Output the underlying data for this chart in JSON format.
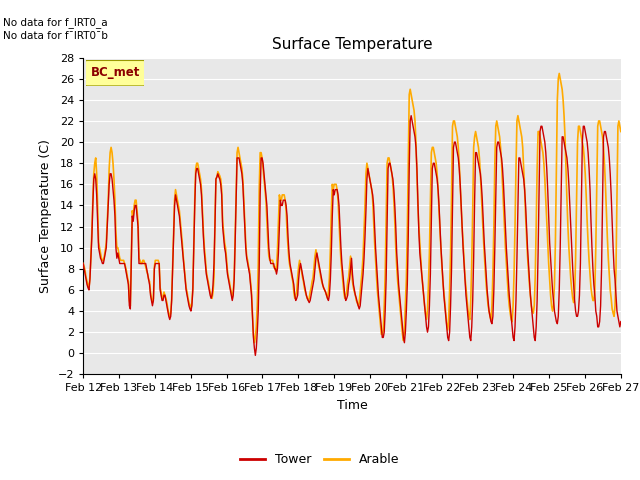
{
  "title": "Surface Temperature",
  "xlabel": "Time",
  "ylabel": "Surface Temperature (C)",
  "ylim": [
    -2,
    28
  ],
  "yticks": [
    -2,
    0,
    2,
    4,
    6,
    8,
    10,
    12,
    14,
    16,
    18,
    20,
    22,
    24,
    26,
    28
  ],
  "xtick_labels": [
    "Feb 12",
    "Feb 13",
    "Feb 14",
    "Feb 15",
    "Feb 16",
    "Feb 17",
    "Feb 18",
    "Feb 19",
    "Feb 20",
    "Feb 21",
    "Feb 22",
    "Feb 23",
    "Feb 24",
    "Feb 25",
    "Feb 26",
    "Feb 27"
  ],
  "tower_color": "#cc0000",
  "arable_color": "#ffaa00",
  "bg_color": "#e8e8e8",
  "no_data_text1": "No data for f_IRT0_a",
  "no_data_text2": "No data for f¯IRT0¯b",
  "bc_met_label": "BC_met",
  "legend_tower": "Tower",
  "legend_arable": "Arable",
  "tower_data": [
    8.5,
    8.0,
    7.5,
    7.0,
    6.5,
    6.2,
    6.0,
    7.0,
    9.0,
    11.0,
    14.0,
    16.5,
    17.0,
    16.5,
    15.0,
    12.5,
    10.0,
    9.5,
    9.0,
    8.8,
    8.5,
    8.5,
    9.0,
    9.5,
    10.0,
    12.0,
    14.0,
    16.0,
    17.0,
    17.0,
    16.5,
    15.5,
    14.5,
    13.0,
    10.0,
    9.0,
    9.5,
    9.0,
    8.5,
    8.5,
    8.5,
    8.5,
    8.5,
    8.5,
    8.0,
    7.5,
    7.0,
    6.5,
    4.5,
    4.2,
    8.5,
    13.0,
    12.5,
    13.5,
    14.0,
    14.0,
    13.0,
    12.0,
    8.5,
    8.5,
    8.5,
    8.5,
    8.5,
    8.5,
    8.5,
    8.5,
    8.0,
    7.5,
    7.0,
    6.5,
    5.5,
    5.0,
    4.5,
    5.0,
    8.0,
    8.5,
    8.5,
    8.5,
    8.5,
    8.5,
    6.0,
    5.5,
    5.0,
    5.0,
    5.5,
    5.5,
    5.0,
    4.5,
    4.0,
    3.5,
    3.2,
    3.5,
    5.0,
    8.0,
    11.0,
    14.0,
    15.0,
    14.5,
    14.0,
    13.5,
    13.0,
    12.0,
    11.0,
    10.0,
    9.0,
    8.0,
    7.0,
    6.0,
    5.5,
    5.0,
    4.5,
    4.2,
    4.0,
    4.5,
    6.0,
    10.0,
    14.0,
    17.0,
    17.5,
    17.5,
    17.0,
    16.5,
    16.0,
    15.0,
    13.0,
    11.0,
    9.5,
    8.5,
    7.5,
    7.0,
    6.5,
    6.0,
    5.5,
    5.2,
    5.5,
    6.5,
    8.5,
    12.0,
    16.5,
    16.7,
    17.0,
    16.7,
    16.5,
    16.0,
    15.0,
    12.0,
    11.0,
    10.0,
    9.5,
    8.5,
    7.5,
    7.0,
    6.5,
    6.0,
    5.5,
    5.0,
    5.5,
    7.0,
    10.5,
    14.5,
    18.5,
    18.5,
    18.5,
    18.0,
    17.5,
    17.0,
    16.0,
    14.0,
    12.0,
    10.0,
    9.0,
    8.5,
    8.0,
    7.5,
    6.5,
    5.5,
    3.5,
    1.5,
    0.5,
    -0.2,
    0.5,
    2.0,
    4.0,
    8.0,
    15.0,
    18.5,
    18.5,
    18.0,
    17.0,
    16.0,
    15.0,
    14.0,
    12.0,
    10.0,
    9.0,
    8.5,
    8.5,
    8.5,
    8.5,
    8.0,
    8.0,
    7.5,
    8.0,
    9.5,
    12.0,
    14.5,
    14.0,
    14.0,
    14.5,
    14.5,
    14.5,
    14.0,
    13.0,
    11.0,
    9.5,
    8.5,
    8.0,
    7.5,
    7.0,
    6.5,
    5.5,
    5.0,
    5.2,
    5.5,
    7.0,
    8.0,
    8.5,
    8.0,
    7.5,
    7.0,
    6.5,
    6.0,
    5.5,
    5.2,
    5.0,
    4.8,
    5.0,
    5.5,
    6.0,
    6.5,
    7.0,
    8.0,
    9.0,
    9.5,
    9.0,
    8.5,
    8.0,
    7.5,
    7.0,
    6.5,
    6.2,
    6.0,
    5.8,
    5.5,
    5.2,
    5.0,
    5.5,
    7.0,
    9.5,
    13.0,
    15.5,
    15.0,
    15.5,
    15.5,
    15.5,
    15.0,
    14.0,
    12.0,
    10.0,
    8.5,
    7.5,
    6.5,
    5.5,
    5.0,
    5.2,
    5.5,
    6.5,
    7.0,
    8.0,
    9.0,
    7.5,
    6.5,
    6.0,
    5.5,
    5.2,
    4.8,
    4.5,
    4.2,
    4.5,
    5.5,
    6.5,
    7.5,
    9.0,
    11.0,
    13.5,
    16.5,
    17.5,
    17.0,
    16.5,
    16.0,
    15.5,
    15.0,
    14.0,
    12.0,
    10.0,
    8.5,
    7.0,
    5.5,
    4.5,
    3.5,
    2.5,
    1.5,
    1.5,
    2.0,
    4.0,
    7.0,
    12.0,
    17.5,
    18.0,
    18.0,
    17.5,
    17.0,
    16.5,
    15.5,
    14.0,
    12.0,
    9.5,
    8.0,
    6.5,
    5.5,
    4.5,
    3.5,
    2.5,
    1.5,
    1.0,
    2.0,
    4.0,
    6.5,
    11.0,
    17.5,
    22.0,
    22.5,
    22.0,
    21.5,
    21.0,
    20.5,
    19.5,
    17.5,
    14.5,
    11.5,
    9.5,
    8.5,
    7.5,
    6.5,
    5.5,
    4.5,
    3.5,
    2.5,
    2.0,
    2.5,
    4.5,
    7.5,
    12.5,
    17.5,
    18.0,
    18.0,
    17.5,
    17.0,
    16.5,
    15.5,
    14.0,
    12.0,
    10.0,
    8.5,
    7.0,
    5.5,
    4.5,
    3.5,
    2.5,
    1.5,
    1.2,
    2.0,
    4.5,
    8.0,
    13.5,
    19.5,
    20.0,
    20.0,
    19.5,
    19.0,
    18.5,
    17.5,
    16.0,
    14.0,
    12.0,
    10.0,
    8.5,
    7.0,
    5.5,
    4.5,
    3.5,
    2.5,
    1.5,
    1.2,
    2.5,
    5.0,
    9.0,
    14.5,
    19.0,
    19.0,
    18.5,
    18.0,
    17.5,
    17.0,
    16.0,
    14.5,
    12.5,
    10.5,
    9.0,
    7.5,
    6.0,
    5.0,
    4.0,
    3.5,
    3.0,
    2.8,
    3.5,
    6.0,
    10.0,
    14.5,
    19.5,
    20.0,
    20.0,
    19.5,
    19.0,
    18.5,
    17.5,
    16.0,
    14.0,
    12.0,
    10.0,
    8.5,
    7.0,
    5.5,
    4.5,
    3.5,
    2.5,
    1.5,
    1.2,
    2.5,
    5.0,
    9.0,
    14.0,
    18.5,
    18.5,
    18.0,
    17.5,
    17.0,
    16.5,
    15.5,
    14.0,
    12.0,
    10.0,
    8.5,
    7.0,
    5.5,
    4.5,
    3.5,
    2.5,
    1.5,
    1.2,
    2.5,
    5.0,
    9.5,
    15.0,
    21.0,
    21.5,
    21.5,
    21.0,
    20.5,
    20.0,
    19.0,
    17.5,
    15.5,
    13.0,
    10.5,
    9.0,
    7.5,
    6.0,
    5.0,
    4.0,
    3.5,
    3.0,
    2.8,
    3.5,
    6.0,
    10.0,
    15.0,
    20.5,
    20.5,
    20.0,
    19.5,
    19.0,
    18.5,
    17.5,
    16.0,
    14.0,
    12.0,
    10.0,
    8.0,
    6.5,
    5.0,
    4.0,
    3.5,
    3.5,
    4.0,
    5.5,
    8.5,
    14.0,
    20.0,
    21.5,
    21.5,
    21.0,
    20.5,
    20.0,
    19.0,
    17.5,
    15.5,
    12.5,
    10.0,
    8.0,
    6.5,
    5.5,
    4.0,
    3.5,
    2.5,
    2.5,
    3.0,
    4.5,
    8.0,
    14.5,
    20.5,
    21.0,
    21.0,
    20.5,
    20.0,
    19.5,
    18.5,
    17.0,
    15.0,
    12.5,
    10.0,
    8.0,
    7.0,
    5.5,
    4.0,
    3.5,
    3.0,
    2.5,
    3.0
  ],
  "arable_data": [
    8.5,
    8.2,
    7.8,
    7.2,
    6.8,
    6.4,
    6.2,
    7.2,
    9.2,
    11.5,
    14.5,
    17.0,
    18.0,
    18.5,
    17.0,
    14.0,
    10.5,
    10.0,
    9.5,
    9.0,
    8.8,
    8.8,
    9.2,
    9.8,
    10.5,
    12.5,
    14.5,
    17.5,
    19.0,
    19.5,
    19.0,
    18.0,
    16.5,
    14.5,
    11.5,
    10.0,
    10.0,
    9.5,
    9.0,
    8.8,
    8.8,
    8.8,
    8.8,
    8.5,
    8.2,
    7.8,
    7.2,
    6.8,
    5.0,
    4.5,
    8.8,
    13.5,
    13.0,
    14.0,
    14.5,
    14.5,
    13.5,
    12.5,
    9.0,
    8.8,
    8.5,
    8.5,
    8.8,
    8.8,
    8.5,
    8.2,
    7.8,
    7.5,
    7.0,
    6.8,
    5.8,
    5.2,
    4.8,
    5.2,
    8.2,
    8.8,
    8.8,
    8.8,
    8.8,
    8.5,
    6.2,
    5.8,
    5.2,
    5.2,
    5.8,
    5.5,
    5.2,
    4.8,
    4.2,
    3.8,
    3.5,
    3.8,
    5.2,
    8.2,
    11.5,
    14.5,
    15.5,
    15.0,
    14.5,
    14.0,
    13.5,
    12.5,
    11.5,
    10.5,
    9.2,
    8.2,
    7.2,
    6.2,
    5.8,
    5.2,
    4.8,
    4.5,
    4.2,
    4.8,
    6.2,
    10.5,
    14.5,
    17.5,
    18.0,
    18.0,
    17.5,
    17.0,
    16.5,
    15.5,
    13.5,
    11.5,
    10.0,
    9.0,
    7.8,
    7.2,
    6.8,
    6.2,
    5.8,
    5.5,
    5.2,
    5.8,
    7.2,
    12.5,
    16.5,
    16.7,
    17.2,
    17.0,
    16.8,
    16.5,
    15.5,
    12.5,
    11.5,
    10.5,
    10.0,
    9.0,
    7.8,
    7.2,
    6.8,
    6.2,
    5.8,
    5.2,
    5.8,
    7.2,
    11.0,
    15.0,
    19.0,
    19.5,
    19.0,
    18.5,
    18.0,
    17.5,
    16.5,
    14.5,
    12.5,
    10.5,
    9.2,
    8.8,
    8.2,
    7.8,
    6.8,
    5.8,
    3.8,
    1.8,
    1.0,
    1.5,
    2.5,
    4.5,
    8.5,
    15.5,
    19.0,
    19.0,
    18.5,
    17.5,
    16.5,
    15.5,
    14.5,
    12.5,
    10.5,
    9.2,
    8.8,
    8.8,
    8.8,
    8.8,
    8.2,
    8.2,
    7.8,
    8.2,
    9.8,
    12.5,
    15.0,
    14.5,
    14.5,
    15.0,
    15.0,
    15.0,
    14.5,
    13.5,
    11.5,
    10.0,
    8.8,
    8.2,
    7.8,
    7.2,
    6.8,
    5.8,
    5.2,
    5.5,
    5.8,
    7.2,
    8.2,
    8.8,
    8.2,
    7.8,
    7.2,
    6.8,
    6.2,
    5.8,
    5.5,
    5.2,
    5.0,
    5.2,
    5.8,
    6.2,
    6.8,
    7.2,
    8.2,
    9.2,
    9.8,
    9.2,
    8.8,
    8.2,
    7.8,
    7.2,
    6.8,
    6.5,
    6.2,
    6.0,
    5.8,
    5.5,
    5.2,
    5.8,
    7.2,
    9.8,
    13.5,
    16.0,
    15.5,
    16.0,
    16.0,
    16.0,
    15.5,
    14.5,
    12.5,
    10.5,
    8.8,
    7.8,
    6.8,
    5.8,
    5.2,
    5.5,
    5.8,
    6.8,
    7.2,
    8.2,
    9.2,
    7.8,
    6.8,
    6.2,
    5.8,
    5.5,
    5.0,
    4.8,
    4.5,
    4.8,
    5.8,
    6.8,
    7.8,
    9.2,
    11.5,
    14.0,
    17.0,
    18.0,
    17.5,
    17.0,
    16.5,
    16.0,
    15.5,
    14.5,
    12.5,
    10.5,
    8.8,
    7.2,
    5.8,
    4.8,
    3.8,
    2.8,
    1.8,
    1.8,
    2.2,
    4.5,
    7.5,
    12.5,
    18.0,
    18.5,
    18.5,
    18.0,
    17.5,
    17.0,
    16.0,
    14.5,
    12.5,
    10.0,
    8.2,
    6.8,
    5.8,
    4.8,
    3.8,
    2.8,
    1.8,
    1.2,
    2.2,
    4.5,
    7.0,
    11.5,
    18.0,
    24.5,
    25.0,
    24.5,
    24.0,
    23.5,
    23.0,
    22.0,
    20.0,
    17.0,
    14.0,
    12.0,
    10.5,
    9.0,
    7.5,
    6.5,
    5.5,
    4.5,
    3.8,
    3.2,
    4.0,
    6.5,
    9.5,
    14.0,
    19.0,
    19.5,
    19.5,
    19.0,
    18.5,
    18.0,
    17.0,
    15.5,
    13.5,
    11.5,
    9.8,
    8.2,
    6.8,
    5.8,
    4.8,
    3.8,
    2.8,
    2.2,
    3.0,
    6.0,
    9.5,
    15.0,
    21.5,
    22.0,
    22.0,
    21.5,
    21.0,
    20.5,
    19.5,
    18.0,
    16.0,
    14.0,
    12.0,
    10.5,
    8.8,
    7.2,
    6.2,
    5.2,
    4.2,
    3.5,
    3.2,
    5.0,
    8.5,
    13.5,
    19.5,
    20.5,
    21.0,
    20.5,
    20.0,
    19.5,
    18.5,
    17.0,
    15.0,
    13.0,
    11.2,
    9.5,
    8.0,
    6.5,
    5.5,
    4.5,
    4.0,
    3.5,
    3.2,
    4.5,
    7.5,
    12.0,
    18.0,
    21.5,
    22.0,
    21.5,
    21.0,
    20.5,
    19.5,
    18.0,
    16.0,
    14.0,
    12.0,
    10.0,
    8.5,
    7.0,
    5.5,
    4.5,
    3.8,
    3.2,
    3.0,
    4.5,
    7.5,
    12.0,
    17.5,
    22.0,
    22.5,
    22.0,
    21.5,
    21.0,
    20.5,
    19.5,
    17.5,
    15.5,
    13.0,
    11.0,
    9.2,
    7.8,
    6.5,
    5.5,
    4.5,
    4.0,
    3.8,
    4.5,
    7.2,
    12.0,
    17.5,
    21.0,
    21.0,
    20.5,
    20.0,
    19.5,
    19.0,
    18.0,
    16.5,
    14.5,
    12.5,
    10.5,
    8.5,
    7.0,
    5.5,
    4.5,
    4.0,
    4.5,
    6.5,
    10.5,
    17.5,
    24.0,
    26.0,
    26.5,
    26.0,
    25.5,
    25.0,
    24.0,
    22.5,
    20.5,
    17.5,
    14.5,
    12.0,
    10.0,
    8.5,
    7.0,
    6.0,
    5.2,
    4.8,
    5.5,
    9.0,
    14.5,
    20.0,
    21.5,
    21.5,
    21.0,
    20.5,
    20.0,
    19.5,
    18.5,
    17.0,
    15.0,
    12.5,
    10.5,
    8.8,
    7.5,
    6.2,
    5.5,
    5.0,
    5.0,
    6.0,
    10.0,
    16.0,
    21.5,
    22.0,
    22.0,
    21.5,
    21.0,
    20.5,
    19.5,
    18.0,
    16.0,
    13.5,
    11.0,
    9.0,
    7.5,
    6.0,
    5.2,
    4.2,
    3.8,
    3.5,
    4.5,
    8.0,
    14.5,
    21.5,
    22.0,
    21.5,
    21.0,
    20.5,
    20.0,
    19.0,
    17.5,
    15.5,
    13.0,
    10.8,
    8.8,
    7.5,
    5.8,
    4.5,
    4.0,
    3.5,
    3.2,
    3.8
  ]
}
